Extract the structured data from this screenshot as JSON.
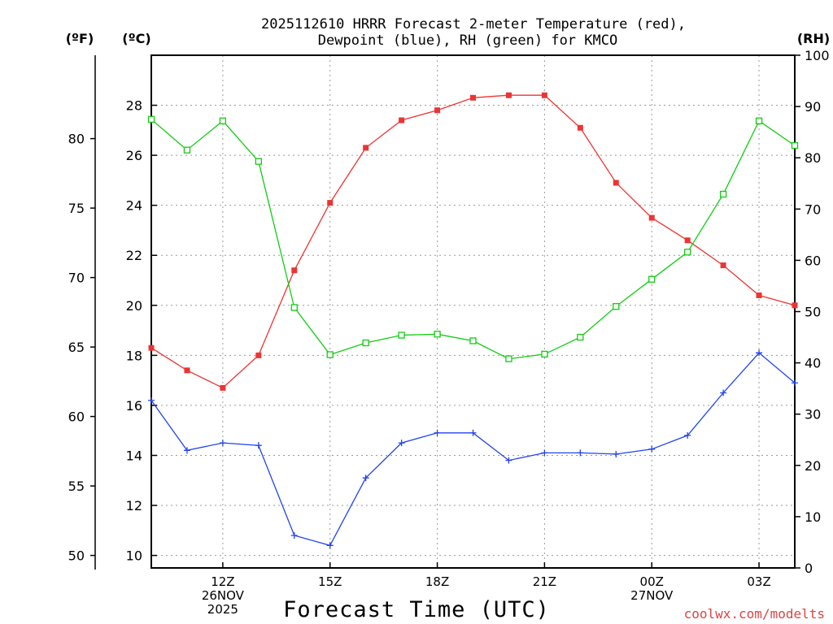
{
  "title_line1": "2025112610 HRRR Forecast 2-meter Temperature (red),",
  "title_line2": "Dewpoint (blue), RH (green) for KMCO",
  "unit_f": "(ºF)",
  "unit_c": "(ºC)",
  "unit_rh": "(RH)",
  "credit": "coolwx.com/modelts",
  "colors": {
    "temp": "#ee3333",
    "dew": "#2244ee",
    "rh": "#11cc11",
    "credit": "#dd4444"
  },
  "chart_data": {
    "type": "line",
    "xlabel": "Forecast Time (UTC)",
    "x_hours": [
      10,
      11,
      12,
      13,
      14,
      15,
      16,
      17,
      18,
      19,
      20,
      21,
      22,
      23,
      24,
      25,
      26,
      27,
      28
    ],
    "xlim": [
      10,
      28
    ],
    "x_ticks": [
      {
        "hour": 12,
        "lines": [
          "12Z",
          "26NOV",
          "2025"
        ]
      },
      {
        "hour": 15,
        "lines": [
          "15Z"
        ]
      },
      {
        "hour": 18,
        "lines": [
          "18Z"
        ]
      },
      {
        "hour": 21,
        "lines": [
          "21Z"
        ]
      },
      {
        "hour": 24,
        "lines": [
          "00Z",
          "27NOV"
        ]
      },
      {
        "hour": 27,
        "lines": [
          "03Z"
        ]
      }
    ],
    "axes": {
      "celsius": {
        "label": "(ºC)",
        "range": [
          9.5,
          30
        ],
        "ticks": [
          10,
          12,
          14,
          16,
          18,
          20,
          22,
          24,
          26,
          28
        ]
      },
      "fahrenheit": {
        "label": "(ºF)",
        "ticks": [
          50,
          55,
          60,
          65,
          70,
          75,
          80
        ]
      },
      "rh": {
        "label": "(RH)",
        "range": [
          0,
          100
        ],
        "ticks": [
          0,
          10,
          20,
          30,
          40,
          50,
          60,
          70,
          80,
          90,
          100
        ]
      }
    },
    "series": [
      {
        "name": "2-meter Temperature",
        "color": "red",
        "units": "C",
        "marker": "filled-square",
        "values": [
          18.3,
          17.4,
          16.7,
          18.0,
          21.4,
          24.1,
          26.3,
          27.4,
          27.8,
          28.3,
          28.4,
          28.4,
          27.1,
          24.9,
          23.5,
          22.6,
          21.6,
          20.4,
          20.0
        ]
      },
      {
        "name": "Dewpoint",
        "color": "blue",
        "units": "C",
        "marker": "plus",
        "values": [
          16.2,
          14.2,
          14.5,
          14.4,
          10.8,
          10.4,
          13.1,
          14.5,
          14.9,
          14.9,
          13.8,
          14.1,
          14.1,
          14.05,
          14.25,
          14.8,
          16.5,
          18.1,
          16.9
        ]
      },
      {
        "name": "RH",
        "color": "green",
        "units": "%",
        "marker": "open-square",
        "values": [
          87.5,
          81.5,
          87.2,
          79.3,
          50.8,
          41.6,
          43.9,
          45.4,
          45.6,
          44.3,
          40.8,
          41.7,
          45.0,
          51.0,
          56.3,
          61.6,
          72.9,
          87.2,
          82.4
        ]
      }
    ]
  }
}
